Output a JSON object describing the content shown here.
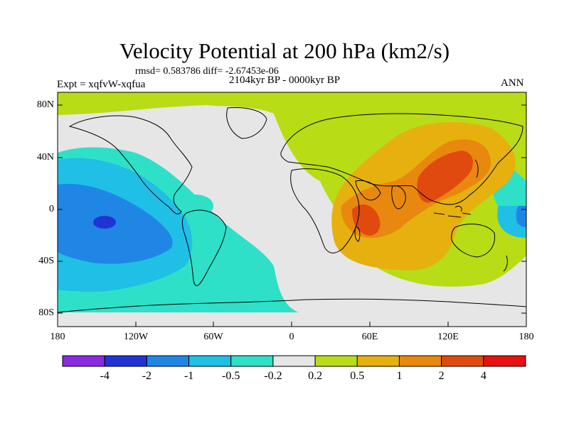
{
  "title": "Velocity Potential at 200 hPa (km2/s)",
  "stats": "rmsd= 0.583786 diff= -2.67453e-06",
  "experiment": "Expt = xqfvW-xqfua",
  "period": "2104kyr BP - 0000kyr BP",
  "season": "ANN",
  "lat_labels": [
    "80N",
    "40N",
    "0",
    "40S",
    "80S"
  ],
  "lon_labels": [
    "180",
    "120W",
    "60W",
    "0",
    "60E",
    "120E",
    "180"
  ],
  "colorbar": {
    "labels": [
      "-4",
      "-2",
      "-1",
      "-0.5",
      "-0.2",
      "0.2",
      "0.5",
      "1",
      "2",
      "4"
    ],
    "colors": [
      "#8a2be2",
      "#2233d6",
      "#1f86e6",
      "#1fbfe6",
      "#2ee0c8",
      "#e6e6e6",
      "#b8dc16",
      "#e6b00f",
      "#e8880f",
      "#e04a0f",
      "#e81010"
    ]
  },
  "field_colors": {
    "very_low": "#2233d6",
    "low": "#1f86e6",
    "mid_low": "#1fbfe6",
    "slight_low": "#2ee0c8",
    "neutral": "#e6e6e6",
    "slight_high": "#b8dc16",
    "mid_high": "#e6b00f",
    "high": "#e8880f",
    "very_high": "#e04a0f"
  }
}
